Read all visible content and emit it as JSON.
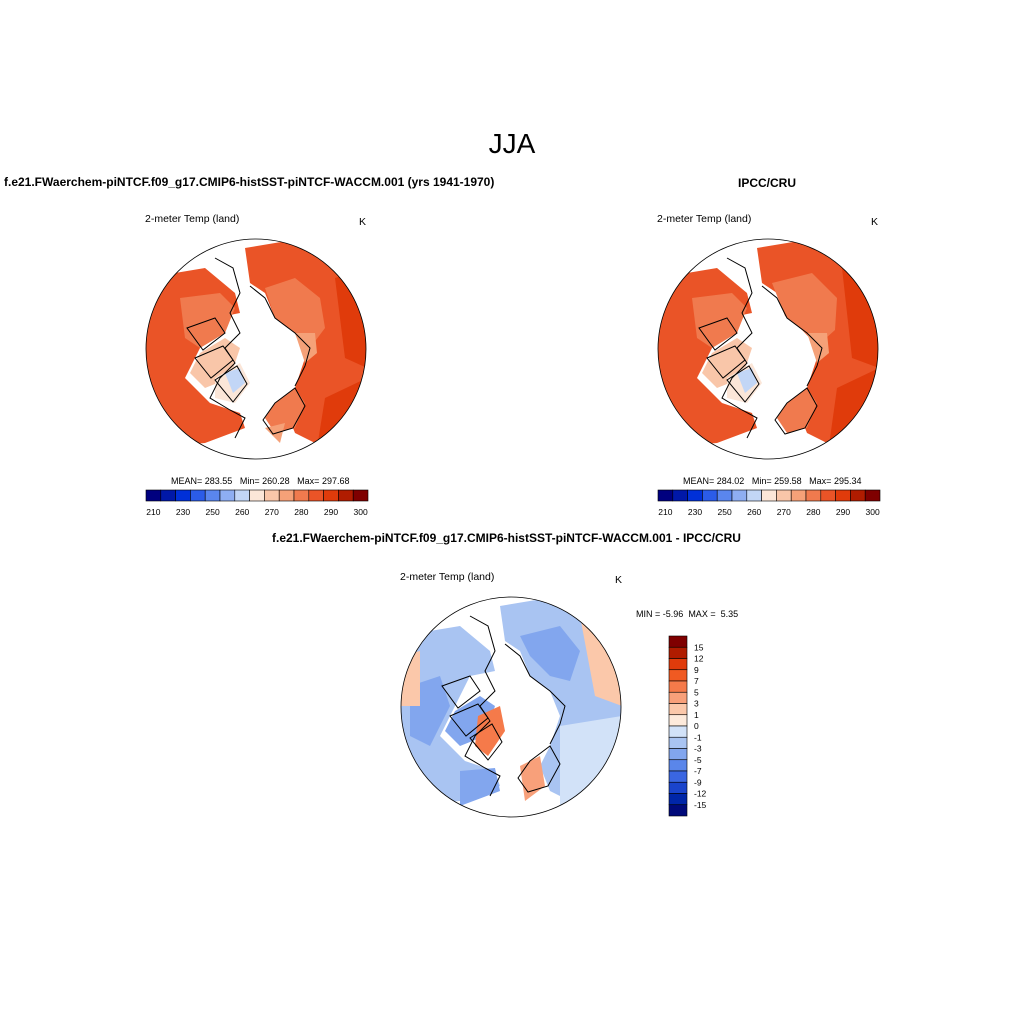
{
  "figure_title": "JJA",
  "colors": {
    "abs_scale": [
      "#00007f",
      "#0018a8",
      "#0030d8",
      "#2b5ce8",
      "#5a86ee",
      "#8eaef2",
      "#c2d6f6",
      "#fbe6d8",
      "#f9c6a9",
      "#f5a178",
      "#f07a4e",
      "#ea5427",
      "#e03b0b",
      "#b01c00",
      "#7f0000"
    ],
    "diff_scale": [
      "#7f0000",
      "#b01c00",
      "#e03b0b",
      "#f05a22",
      "#f57a4a",
      "#f8a07a",
      "#fbc8aa",
      "#fdeadb",
      "#d2e2f8",
      "#a9c4f2",
      "#82a6ee",
      "#5a86ea",
      "#3a66e2",
      "#1a44cc",
      "#0026a8",
      "#000a7a"
    ]
  },
  "panels": [
    {
      "title": "f.e21.FWaerchem-piNTCF.f09_g17.CMIP6-histSST-piNTCF-WACCM.001 (yrs 1941-1970)",
      "left_label": "2-meter Temp (land)",
      "right_label": "K",
      "stats": {
        "mean_label": "MEAN=",
        "mean": "283.55",
        "min_label": "Min=",
        "min": "260.28",
        "max_label": "Max=",
        "max": "297.68"
      },
      "colorbar_ticks": [
        "210",
        "230",
        "250",
        "260",
        "270",
        "280",
        "290",
        "300"
      ]
    },
    {
      "title": "IPCC/CRU",
      "left_label": "2-meter Temp (land)",
      "right_label": "K",
      "stats": {
        "mean_label": "MEAN=",
        "mean": "284.02",
        "min_label": "Min=",
        "min": "259.58",
        "max_label": "Max=",
        "max": "295.34"
      },
      "colorbar_ticks": [
        "210",
        "230",
        "250",
        "260",
        "270",
        "280",
        "290",
        "300"
      ]
    },
    {
      "title": "f.e21.FWaerchem-piNTCF.f09_g17.CMIP6-histSST-piNTCF-WACCM.001 - IPCC/CRU",
      "left_label": "2-meter Temp (land)",
      "right_label": "K",
      "stats": {
        "min_label": "MIN =",
        "min": "-5.96",
        "max_label": "MAX =",
        "max": "5.35"
      },
      "colorbar_ticks": [
        "15",
        "12",
        "9",
        "7",
        "5",
        "3",
        "1",
        "0",
        "-1",
        "-3",
        "-5",
        "-7",
        "-9",
        "-12",
        "-15"
      ]
    }
  ]
}
